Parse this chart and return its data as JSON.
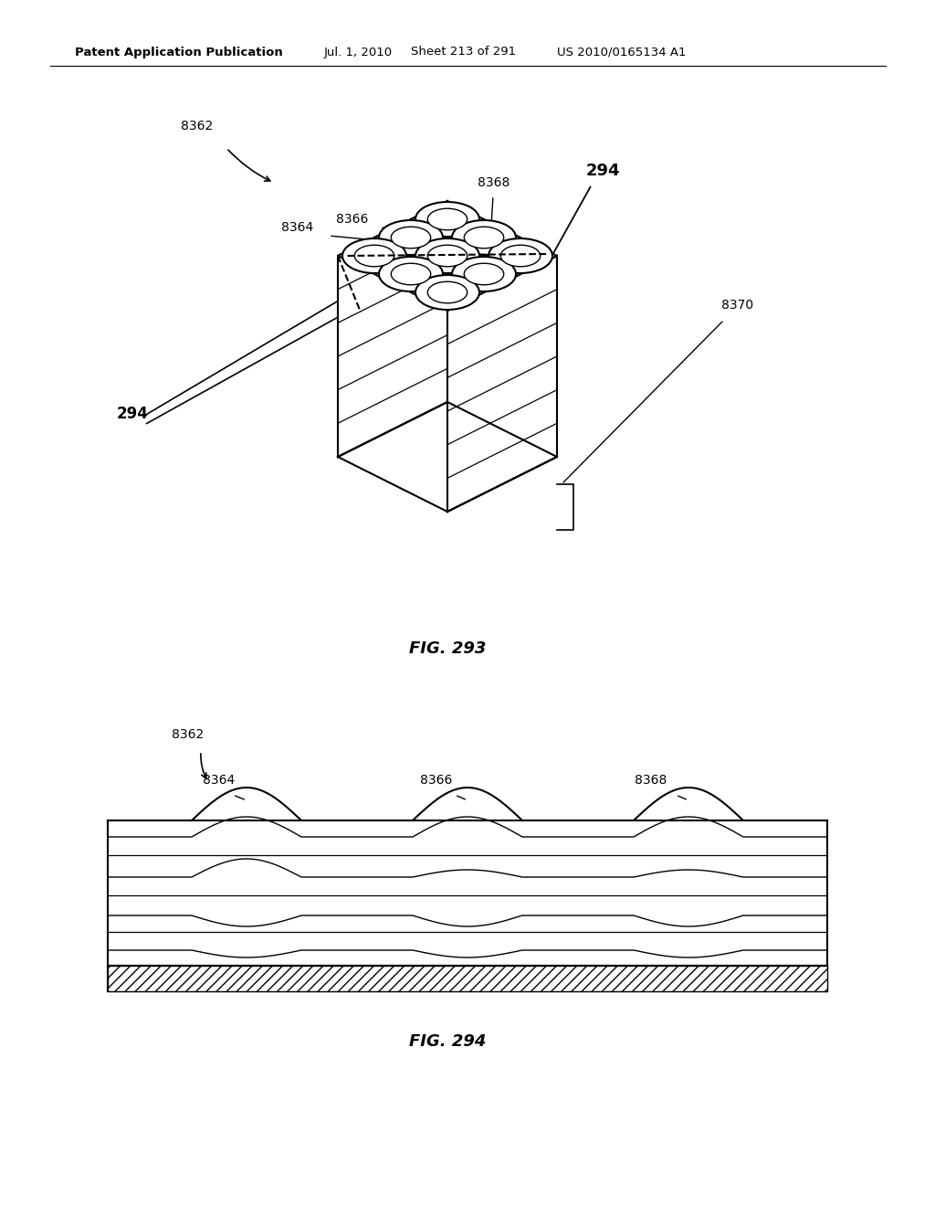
{
  "background_color": "#ffffff",
  "header_text": "Patent Application Publication",
  "header_date": "Jul. 1, 2010",
  "header_sheet": "Sheet 213 of 291",
  "header_patent": "US 2010/0165134 A1",
  "fig293_title": "FIG. 293",
  "fig294_title": "FIG. 294"
}
